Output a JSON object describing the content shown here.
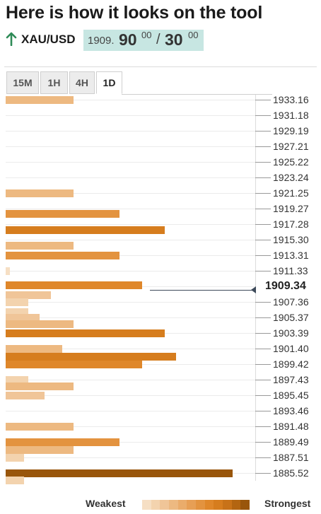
{
  "header": {
    "title": "Here is how it looks on the tool"
  },
  "pair": {
    "name": "XAU/USD",
    "direction_icon": "arrow-up-icon",
    "price_int": "1909.",
    "bid": "90",
    "bid_sup": "00",
    "separator": "/",
    "ask": "30",
    "ask_sup": "00"
  },
  "tabs": [
    {
      "label": "15M",
      "active": false
    },
    {
      "label": "1H",
      "active": false
    },
    {
      "label": "4H",
      "active": false
    },
    {
      "label": "1D",
      "active": true
    }
  ],
  "levels": [
    "1933.16",
    "1931.18",
    "1929.19",
    "1927.21",
    "1925.22",
    "1923.24",
    "1921.25",
    "1919.27",
    "1917.28",
    "1915.30",
    "1913.31",
    "1911.33",
    "1909.34",
    "1907.36",
    "1905.37",
    "1903.39",
    "1901.40",
    "1899.42",
    "1897.43",
    "1895.45",
    "1893.46",
    "1891.48",
    "1889.49",
    "1887.51",
    "1885.52"
  ],
  "current_price": "1909.34",
  "colors": {
    "accent": "#e38b1e",
    "positive_arrow": "#2e8b57",
    "price_box": "#c7e6e2",
    "strength_scale": [
      "#f6dfc4",
      "#f3d3ae",
      "#f0c598",
      "#edb981",
      "#eaac6b",
      "#e79f55",
      "#e3933f",
      "#df872a",
      "#d67d1e",
      "#c87218",
      "#b36511",
      "#99560b"
    ]
  },
  "chart_data": {
    "type": "bar",
    "orientation": "horizontal",
    "y_axis_ticks": [
      "1933.16",
      "1931.18",
      "1929.19",
      "1927.21",
      "1925.22",
      "1923.24",
      "1921.25",
      "1919.27",
      "1917.28",
      "1915.30",
      "1913.31",
      "1911.33",
      "1909.34",
      "1907.36",
      "1905.37",
      "1903.39",
      "1901.40",
      "1899.42",
      "1897.43",
      "1895.45",
      "1893.46",
      "1891.48",
      "1889.49",
      "1887.51",
      "1885.52"
    ],
    "ylim": [
      1884.5,
      1934.2
    ],
    "xlim": [
      0,
      10
    ],
    "current_price": 1909.34,
    "bars": [
      {
        "price": 1933.16,
        "strength": 3
      },
      {
        "price": 1921.25,
        "strength": 3
      },
      {
        "price": 1918.6,
        "strength": 5
      },
      {
        "price": 1916.6,
        "strength": 7
      },
      {
        "price": 1914.6,
        "strength": 3
      },
      {
        "price": 1913.31,
        "strength": 5
      },
      {
        "price": 1911.33,
        "strength": 0.2
      },
      {
        "price": 1909.5,
        "strength": 6
      },
      {
        "price": 1908.3,
        "strength": 2
      },
      {
        "price": 1907.36,
        "strength": 1
      },
      {
        "price": 1906.1,
        "strength": 1
      },
      {
        "price": 1905.37,
        "strength": 1.5
      },
      {
        "price": 1904.6,
        "strength": 3
      },
      {
        "price": 1903.39,
        "strength": 7
      },
      {
        "price": 1901.4,
        "strength": 2.5
      },
      {
        "price": 1900.4,
        "strength": 7.5
      },
      {
        "price": 1899.42,
        "strength": 6
      },
      {
        "price": 1897.43,
        "strength": 1
      },
      {
        "price": 1896.6,
        "strength": 3
      },
      {
        "price": 1895.45,
        "strength": 1.7
      },
      {
        "price": 1891.48,
        "strength": 3
      },
      {
        "price": 1889.49,
        "strength": 5
      },
      {
        "price": 1888.5,
        "strength": 3
      },
      {
        "price": 1887.51,
        "strength": 0.8
      },
      {
        "price": 1885.52,
        "strength": 10
      },
      {
        "price": 1884.6,
        "strength": 0.8
      }
    ]
  },
  "legend": {
    "weakest": "Weakest",
    "strongest": "Strongest"
  }
}
